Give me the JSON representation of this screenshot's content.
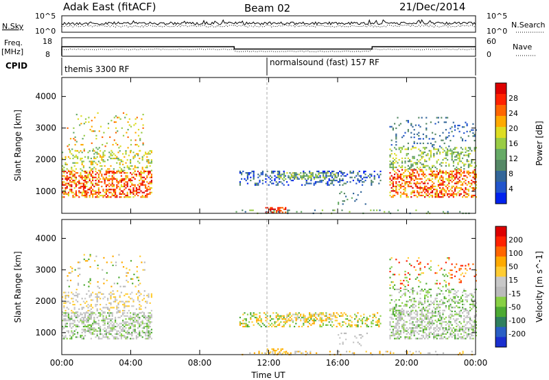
{
  "header": {
    "title": "Adak East (fitACF)",
    "beam": "Beam 02",
    "date": "21/Dec/2014"
  },
  "top_panel": {
    "left_label": "N.Sky",
    "left_ticks": [
      "10^5",
      "10^0"
    ],
    "right_ticks": [
      "10^5",
      "10^0"
    ],
    "right_label": "N.Search"
  },
  "freq_panel": {
    "left_label_1": "Freq.",
    "left_label_2": "[MHz]",
    "left_ticks": [
      "18",
      "8"
    ],
    "right_ticks": [
      "60",
      "0"
    ],
    "right_label": "Nave",
    "cpid_label": "CPID",
    "modes": [
      "themis 3300 RF",
      "normalsound (fast) 157 RF"
    ]
  },
  "colors": {
    "power": [
      "#0022ee",
      "#2255cc",
      "#336699",
      "#558866",
      "#66aa66",
      "#99cc44",
      "#dddd22",
      "#ffaa00",
      "#ff6600",
      "#ff2200",
      "#dd0000"
    ],
    "velocity": [
      "#1a2fcf",
      "#2a5fc5",
      "#2f7f5f",
      "#4daa33",
      "#88d044",
      "#bbbbbb",
      "#c8c8c8",
      "#ffcc33",
      "#ffaa00",
      "#ff6600",
      "#ff2200",
      "#dd0000"
    ]
  },
  "chart_data": [
    {
      "type": "heatmap",
      "ylabel": "Slant Range [km]",
      "yticks": [
        "4000",
        "3000",
        "2000",
        "1000"
      ],
      "ylim": [
        300,
        4600
      ],
      "xlim": [
        0,
        24
      ],
      "colorbar": {
        "label": "Power [dB]",
        "ticks": [
          "28",
          "24",
          "20",
          "16",
          "12",
          "8",
          "4"
        ],
        "range": [
          0,
          30
        ]
      }
    },
    {
      "type": "heatmap",
      "ylabel": "Slant Range [km]",
      "yticks": [
        "4000",
        "3000",
        "2000",
        "1000"
      ],
      "ylim": [
        300,
        4600
      ],
      "xlim": [
        0,
        24
      ],
      "xticks": [
        "00:00",
        "04:00",
        "08:00",
        "12:00",
        "16:00",
        "20:00",
        "00:00"
      ],
      "xlabel": "Time UT",
      "colorbar": {
        "label": "Velocity [m s^-1]",
        "ticks": [
          "200",
          "100",
          "50",
          "15",
          "-15",
          "-50",
          "-100",
          "-200"
        ],
        "range": [
          -250,
          250
        ]
      }
    }
  ]
}
